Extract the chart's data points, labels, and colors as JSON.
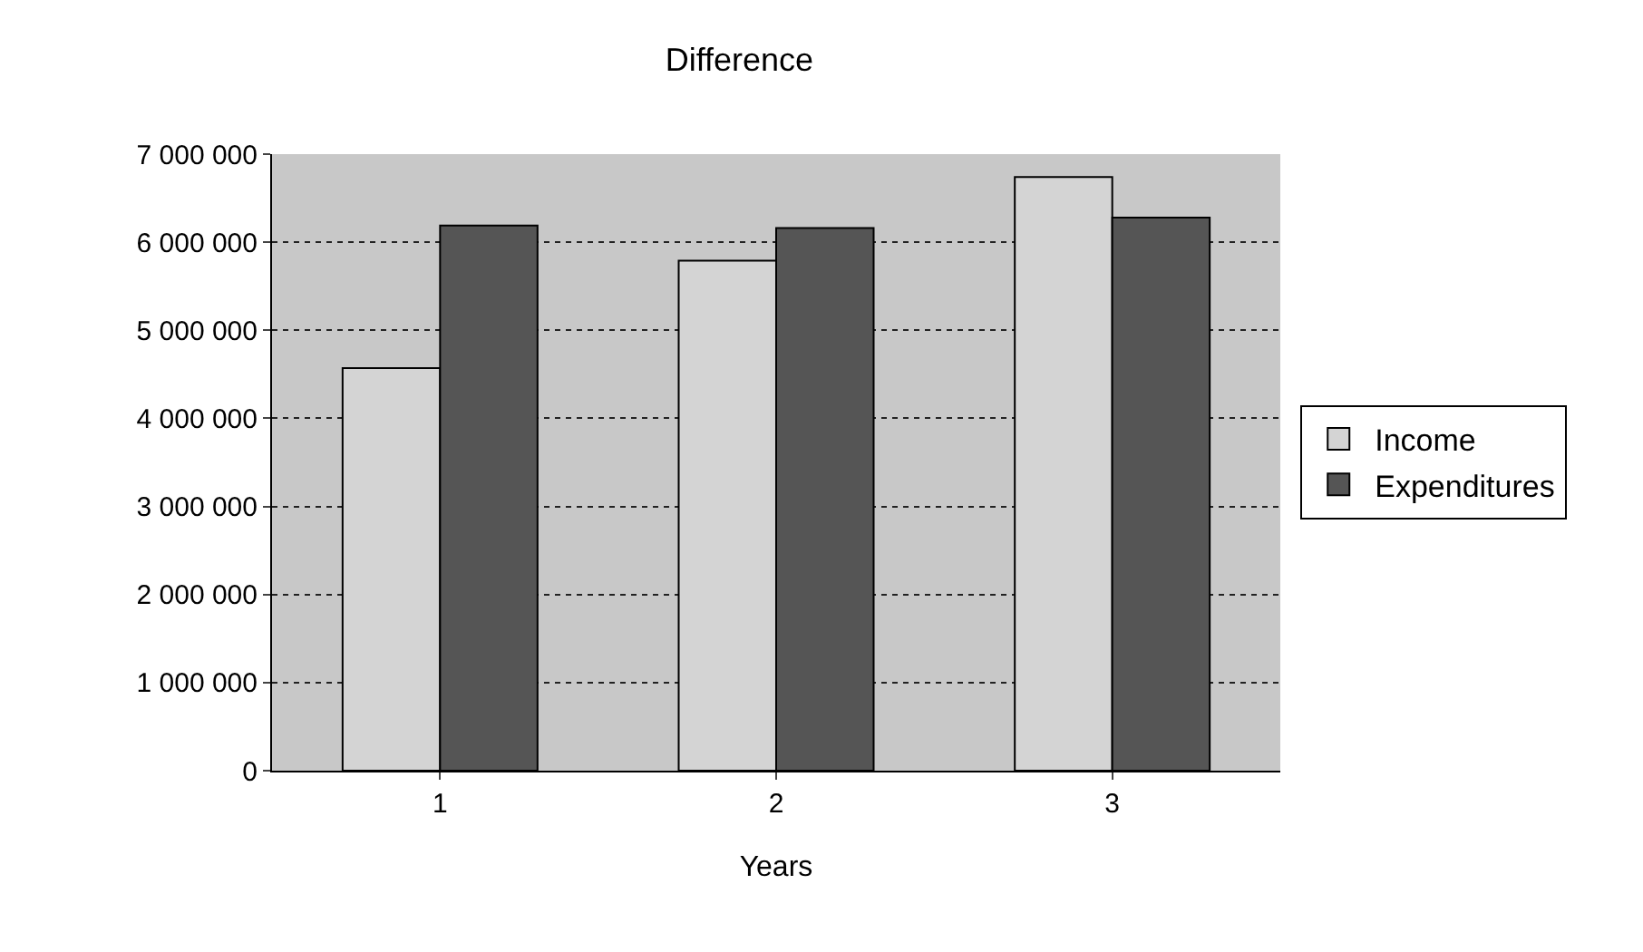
{
  "chart_data": {
    "type": "bar",
    "title": "Difference",
    "xlabel": "Years",
    "categories": [
      "1",
      "2",
      "3"
    ],
    "series": [
      {
        "name": "Income",
        "color": "#d4d4d4",
        "values": [
          4570000,
          5790000,
          6740000
        ]
      },
      {
        "name": "Expenditures",
        "color": "#555555",
        "values": [
          6190000,
          6160000,
          6280000
        ]
      }
    ],
    "ylim": [
      0,
      7000000
    ],
    "yticks": [
      {
        "value": 0,
        "label": "0"
      },
      {
        "value": 1000000,
        "label": "1 000 000"
      },
      {
        "value": 2000000,
        "label": "2 000 000"
      },
      {
        "value": 3000000,
        "label": "3 000 000"
      },
      {
        "value": 4000000,
        "label": "4 000 000"
      },
      {
        "value": 5000000,
        "label": "5 000 000"
      },
      {
        "value": 6000000,
        "label": "6 000 000"
      },
      {
        "value": 7000000,
        "label": "7 000 000"
      }
    ],
    "grid": "y",
    "legend": "right"
  }
}
